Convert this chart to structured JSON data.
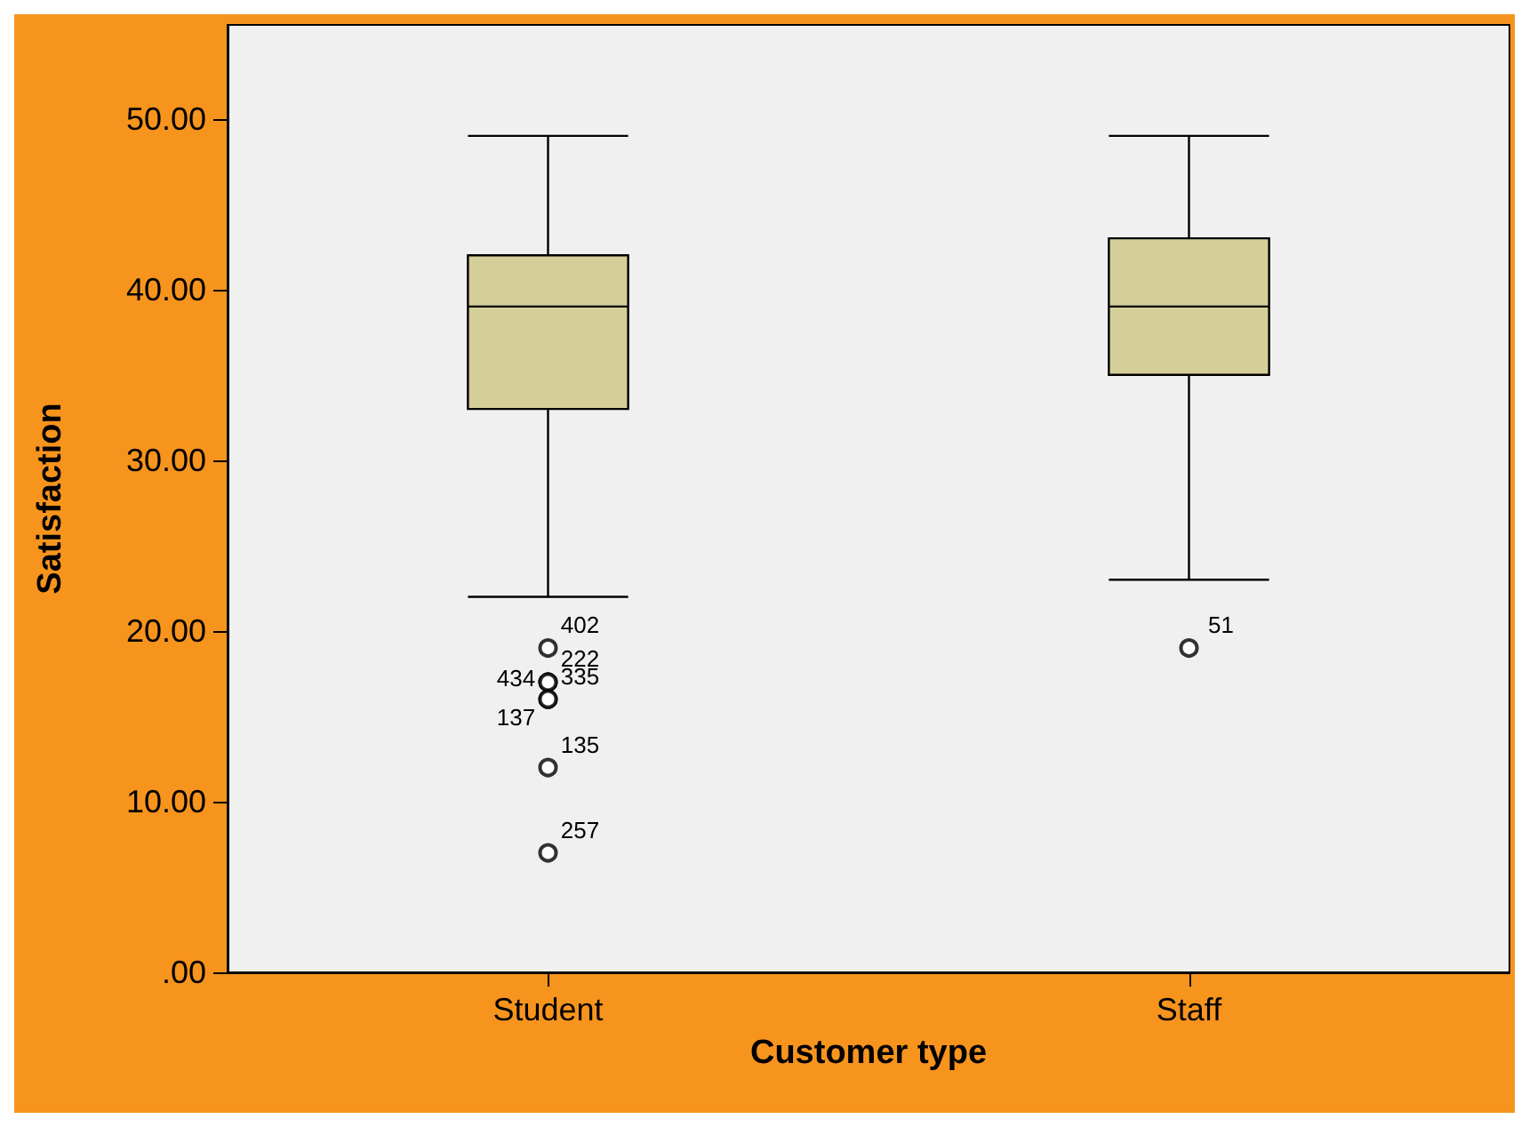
{
  "chart_data": {
    "type": "box",
    "xlabel": "Customer type",
    "ylabel": "Satisfaction",
    "categories": [
      "Student",
      "Staff"
    ],
    "color": "#d4cf98",
    "boxes": [
      {
        "low": 22,
        "q1": 33,
        "median": 39,
        "q3": 42,
        "high": 49,
        "outliers": [
          19,
          17,
          17,
          16,
          16,
          12,
          7
        ]
      },
      {
        "low": 23,
        "q1": 35,
        "median": 39,
        "q3": 43,
        "high": 49,
        "outliers": [
          19
        ]
      }
    ],
    "ylim": [
      0,
      55.5
    ],
    "yticks": [
      {
        "value": 0,
        "label": ".00"
      },
      {
        "value": 10,
        "label": "10.00"
      },
      {
        "value": 20,
        "label": "20.00"
      },
      {
        "value": 30,
        "label": "30.00"
      },
      {
        "value": 40,
        "label": "40.00"
      },
      {
        "value": 50,
        "label": "50.00"
      }
    ],
    "grid": false,
    "annotations": [
      "402",
      "222",
      "434",
      "335",
      "137",
      "135",
      "257",
      "51"
    ]
  }
}
